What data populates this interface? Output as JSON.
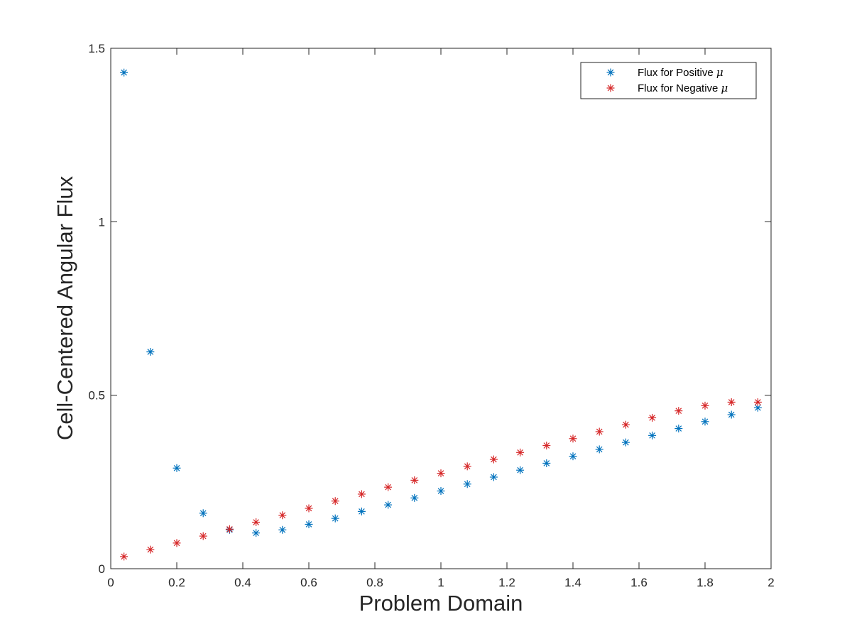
{
  "chart_data": {
    "type": "scatter",
    "title": "",
    "xlabel": "Problem Domain",
    "ylabel": "Cell-Centered Angular Flux",
    "xlim": [
      0,
      2
    ],
    "ylim": [
      0,
      1.5
    ],
    "xticks": [
      0,
      0.2,
      0.4,
      0.6,
      0.8,
      1,
      1.2,
      1.4,
      1.6,
      1.8,
      2
    ],
    "xtick_labels": [
      "0",
      "0.2",
      "0.4",
      "0.6",
      "0.8",
      "1",
      "1.2",
      "1.4",
      "1.6",
      "1.8",
      "2"
    ],
    "yticks": [
      0,
      0.5,
      1,
      1.5
    ],
    "ytick_labels": [
      "0",
      "0.5",
      "1",
      "1.5"
    ],
    "grid": false,
    "marker": "asterisk",
    "legend_position": "top-right",
    "x": [
      0.04,
      0.12,
      0.2,
      0.28,
      0.36,
      0.44,
      0.52,
      0.6,
      0.68,
      0.76,
      0.84,
      0.92,
      1.0,
      1.08,
      1.16,
      1.24,
      1.32,
      1.4,
      1.48,
      1.56,
      1.64,
      1.72,
      1.8,
      1.88,
      1.96
    ],
    "series": [
      {
        "name": "Flux for Positive μ",
        "legend_text": "Flux for Positive ",
        "legend_symbol": "μ",
        "color": "#0072bd",
        "values": [
          1.43,
          0.625,
          0.29,
          0.16,
          0.112,
          0.103,
          0.112,
          0.128,
          0.145,
          0.165,
          0.184,
          0.204,
          0.224,
          0.244,
          0.264,
          0.284,
          0.304,
          0.324,
          0.344,
          0.364,
          0.384,
          0.404,
          0.424,
          0.444,
          0.464
        ]
      },
      {
        "name": "Flux for Negative μ",
        "legend_text": "Flux for Negative ",
        "legend_symbol": "μ",
        "color": "#d62728",
        "values": [
          0.035,
          0.055,
          0.074,
          0.094,
          0.114,
          0.134,
          0.154,
          0.174,
          0.195,
          0.215,
          0.235,
          0.255,
          0.275,
          0.295,
          0.315,
          0.335,
          0.355,
          0.375,
          0.395,
          0.415,
          0.435,
          0.455,
          0.47,
          0.48,
          0.48
        ]
      }
    ]
  }
}
